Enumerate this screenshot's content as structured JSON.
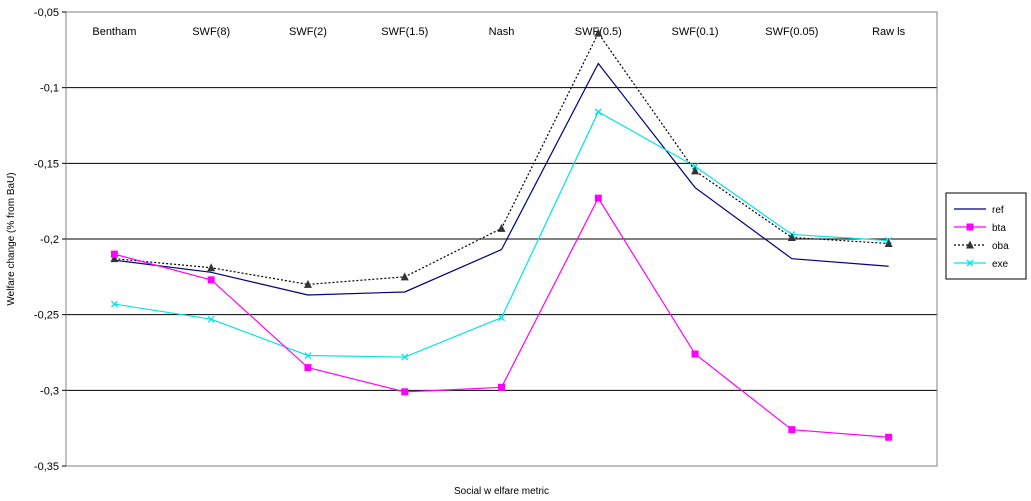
{
  "chart_data": {
    "type": "line",
    "title": "",
    "xlabel": "Social w elfare metric",
    "ylabel": "Welfare change (% from BaU)",
    "categories": [
      "Bentham",
      "SWF(8)",
      "SWF(2)",
      "SWF(1.5)",
      "Nash",
      "SWF(0.5)",
      "SWF(0.1)",
      "SWF(0.05)",
      "Raw ls"
    ],
    "ylim": [
      -0.35,
      -0.05
    ],
    "yticks": [
      -0.05,
      -0.1,
      -0.15,
      -0.2,
      -0.25,
      -0.3,
      -0.35
    ],
    "ytick_labels": [
      "-0,05",
      "-0,1",
      "-0,15",
      "-0,2",
      "-0,25",
      "-0,3",
      "-0,35"
    ],
    "grid": true,
    "category_labels_position": "top",
    "legend_position": "right",
    "series": [
      {
        "name": "ref",
        "color": "#000080",
        "dash": "solid",
        "marker": "none",
        "values": [
          -0.214,
          -0.222,
          -0.237,
          -0.235,
          -0.207,
          -0.084,
          -0.166,
          -0.213,
          -0.218
        ]
      },
      {
        "name": "bta",
        "color": "#ff00ff",
        "dash": "solid",
        "marker": "square",
        "values": [
          -0.21,
          -0.227,
          -0.285,
          -0.301,
          -0.298,
          -0.173,
          -0.276,
          -0.326,
          -0.331
        ]
      },
      {
        "name": "oba",
        "color": "#000000",
        "dash": "dotted",
        "marker": "triangle",
        "values": [
          -0.213,
          -0.219,
          -0.23,
          -0.225,
          -0.193,
          -0.064,
          -0.155,
          -0.199,
          -0.203
        ]
      },
      {
        "name": "exe",
        "color": "#00e5e5",
        "dash": "solid",
        "marker": "x",
        "values": [
          -0.243,
          -0.253,
          -0.277,
          -0.278,
          -0.252,
          -0.116,
          -0.152,
          -0.197,
          -0.201
        ]
      }
    ]
  }
}
